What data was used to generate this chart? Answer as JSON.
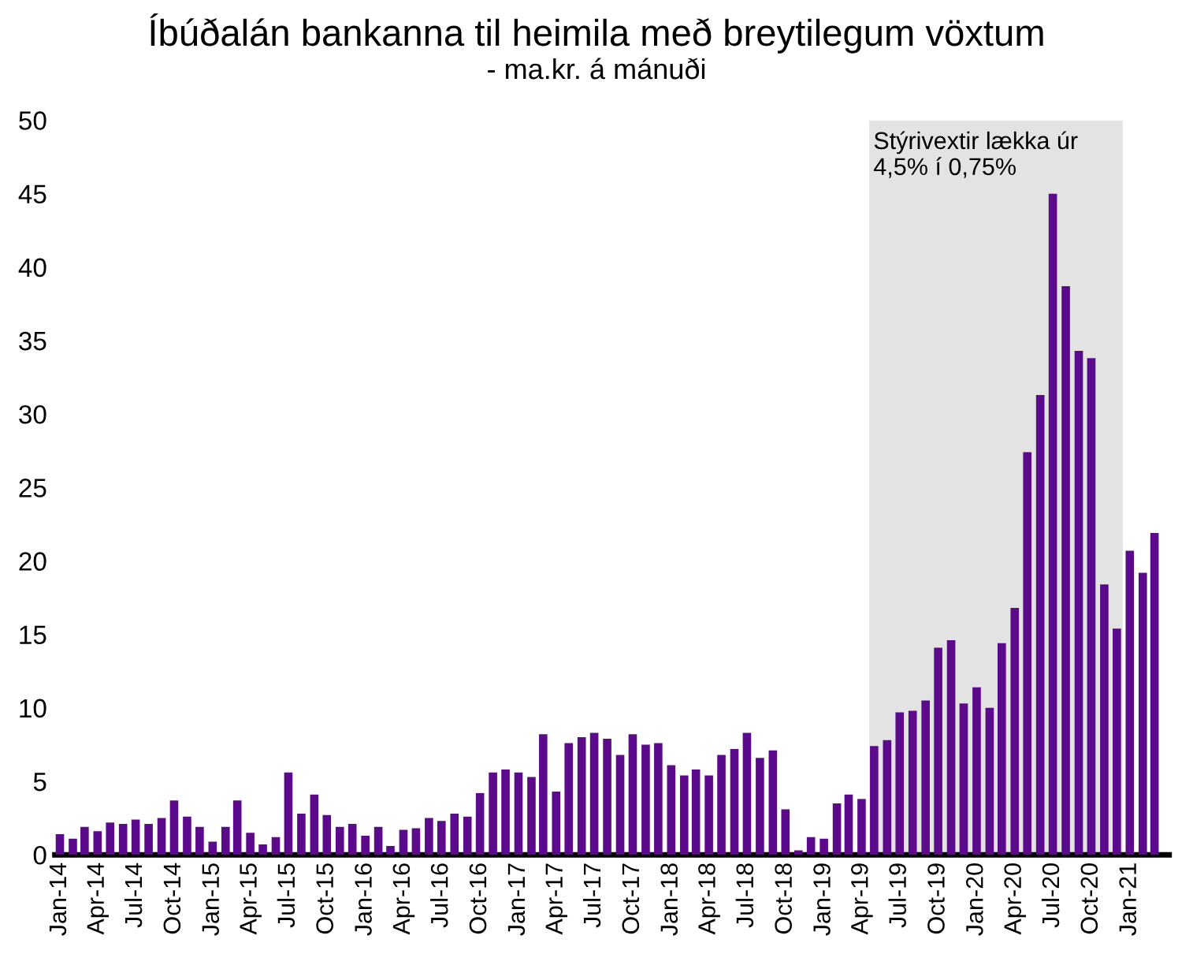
{
  "chart_data": {
    "type": "bar",
    "title": "Íbúðalán bankanna til heimila með breytilegum vöxtum",
    "subtitle": "- ma.kr. á mánuði",
    "x": [
      "2014-01",
      "2014-02",
      "2014-03",
      "2014-04",
      "2014-05",
      "2014-06",
      "2014-07",
      "2014-08",
      "2014-09",
      "2014-10",
      "2014-11",
      "2014-12",
      "2015-01",
      "2015-02",
      "2015-03",
      "2015-04",
      "2015-05",
      "2015-06",
      "2015-07",
      "2015-08",
      "2015-09",
      "2015-10",
      "2015-11",
      "2015-12",
      "2016-01",
      "2016-02",
      "2016-03",
      "2016-04",
      "2016-05",
      "2016-06",
      "2016-07",
      "2016-08",
      "2016-09",
      "2016-10",
      "2016-11",
      "2016-12",
      "2017-01",
      "2017-02",
      "2017-03",
      "2017-04",
      "2017-05",
      "2017-06",
      "2017-07",
      "2017-08",
      "2017-09",
      "2017-10",
      "2017-11",
      "2017-12",
      "2018-01",
      "2018-02",
      "2018-03",
      "2018-04",
      "2018-05",
      "2018-06",
      "2018-07",
      "2018-08",
      "2018-09",
      "2018-10",
      "2018-11",
      "2018-12",
      "2019-01",
      "2019-02",
      "2019-03",
      "2019-04",
      "2019-05",
      "2019-06",
      "2019-07",
      "2019-08",
      "2019-09",
      "2019-10",
      "2019-11",
      "2019-12",
      "2020-01",
      "2020-02",
      "2020-03",
      "2020-04",
      "2020-05",
      "2020-06",
      "2020-07",
      "2020-08",
      "2020-09",
      "2020-10",
      "2020-11",
      "2020-12",
      "2021-01",
      "2021-02",
      "2021-03"
    ],
    "series": [
      {
        "color": "#5c0a8c",
        "values": [
          1.4,
          1.1,
          1.9,
          1.6,
          2.2,
          2.1,
          2.4,
          2.1,
          2.5,
          3.7,
          2.6,
          1.9,
          0.9,
          1.9,
          3.7,
          1.5,
          0.7,
          1.2,
          5.6,
          2.8,
          4.1,
          2.7,
          1.9,
          2.1,
          1.3,
          1.9,
          0.6,
          1.7,
          1.8,
          2.5,
          2.3,
          2.8,
          2.6,
          4.2,
          5.6,
          5.8,
          5.6,
          5.3,
          8.2,
          4.3,
          7.6,
          8.0,
          8.3,
          7.9,
          6.8,
          8.2,
          7.5,
          7.6,
          6.1,
          5.4,
          5.8,
          5.4,
          6.8,
          7.2,
          8.3,
          6.6,
          7.1,
          3.1,
          0.3,
          1.2,
          1.1,
          3.5,
          4.1,
          3.8,
          7.4,
          7.8,
          9.7,
          9.8,
          10.5,
          14.1,
          14.6,
          10.3,
          11.4,
          10.0,
          14.4,
          16.8,
          27.4,
          31.3,
          45.0,
          38.7,
          34.3,
          33.8,
          18.4,
          15.4,
          20.7,
          19.2,
          21.9
        ]
      }
    ],
    "xlim": [
      "2013-12-20",
      "2021-04-05"
    ],
    "xticks": [
      {
        "value": "2014-01",
        "label": "Jan-14"
      },
      {
        "value": "2014-04",
        "label": "Apr-14"
      },
      {
        "value": "2014-07",
        "label": "Jul-14"
      },
      {
        "value": "2014-10",
        "label": "Oct-14"
      },
      {
        "value": "2015-01",
        "label": "Jan-15"
      },
      {
        "value": "2015-04",
        "label": "Apr-15"
      },
      {
        "value": "2015-07",
        "label": "Jul-15"
      },
      {
        "value": "2015-10",
        "label": "Oct-15"
      },
      {
        "value": "2016-01",
        "label": "Jan-16"
      },
      {
        "value": "2016-04",
        "label": "Apr-16"
      },
      {
        "value": "2016-07",
        "label": "Jul-16"
      },
      {
        "value": "2016-10",
        "label": "Oct-16"
      },
      {
        "value": "2017-01",
        "label": "Jan-17"
      },
      {
        "value": "2017-04",
        "label": "Apr-17"
      },
      {
        "value": "2017-07",
        "label": "Jul-17"
      },
      {
        "value": "2017-10",
        "label": "Oct-17"
      },
      {
        "value": "2018-01",
        "label": "Jan-18"
      },
      {
        "value": "2018-04",
        "label": "Apr-18"
      },
      {
        "value": "2018-07",
        "label": "Jul-18"
      },
      {
        "value": "2018-10",
        "label": "Oct-18"
      },
      {
        "value": "2019-01",
        "label": "Jan-19"
      },
      {
        "value": "2019-04",
        "label": "Apr-19"
      },
      {
        "value": "2019-07",
        "label": "Jul-19"
      },
      {
        "value": "2019-10",
        "label": "Oct-19"
      },
      {
        "value": "2020-01",
        "label": "Jan-20"
      },
      {
        "value": "2020-04",
        "label": "Apr-20"
      },
      {
        "value": "2020-07",
        "label": "Jul-20"
      },
      {
        "value": "2020-10",
        "label": "Oct-20"
      },
      {
        "value": "2021-01",
        "label": "Jan-21"
      }
    ],
    "ylim": [
      0,
      50
    ],
    "yticks": [
      0,
      5,
      10,
      15,
      20,
      25,
      30,
      35,
      40,
      45,
      50
    ],
    "grid": false,
    "bands": [
      {
        "axis": "x",
        "from": "2019-04-19",
        "to": "2020-12-15",
        "label": "Stýrivextir lækka úr\n4,5% í 0,75%",
        "color": "#e3e3e3"
      }
    ]
  }
}
